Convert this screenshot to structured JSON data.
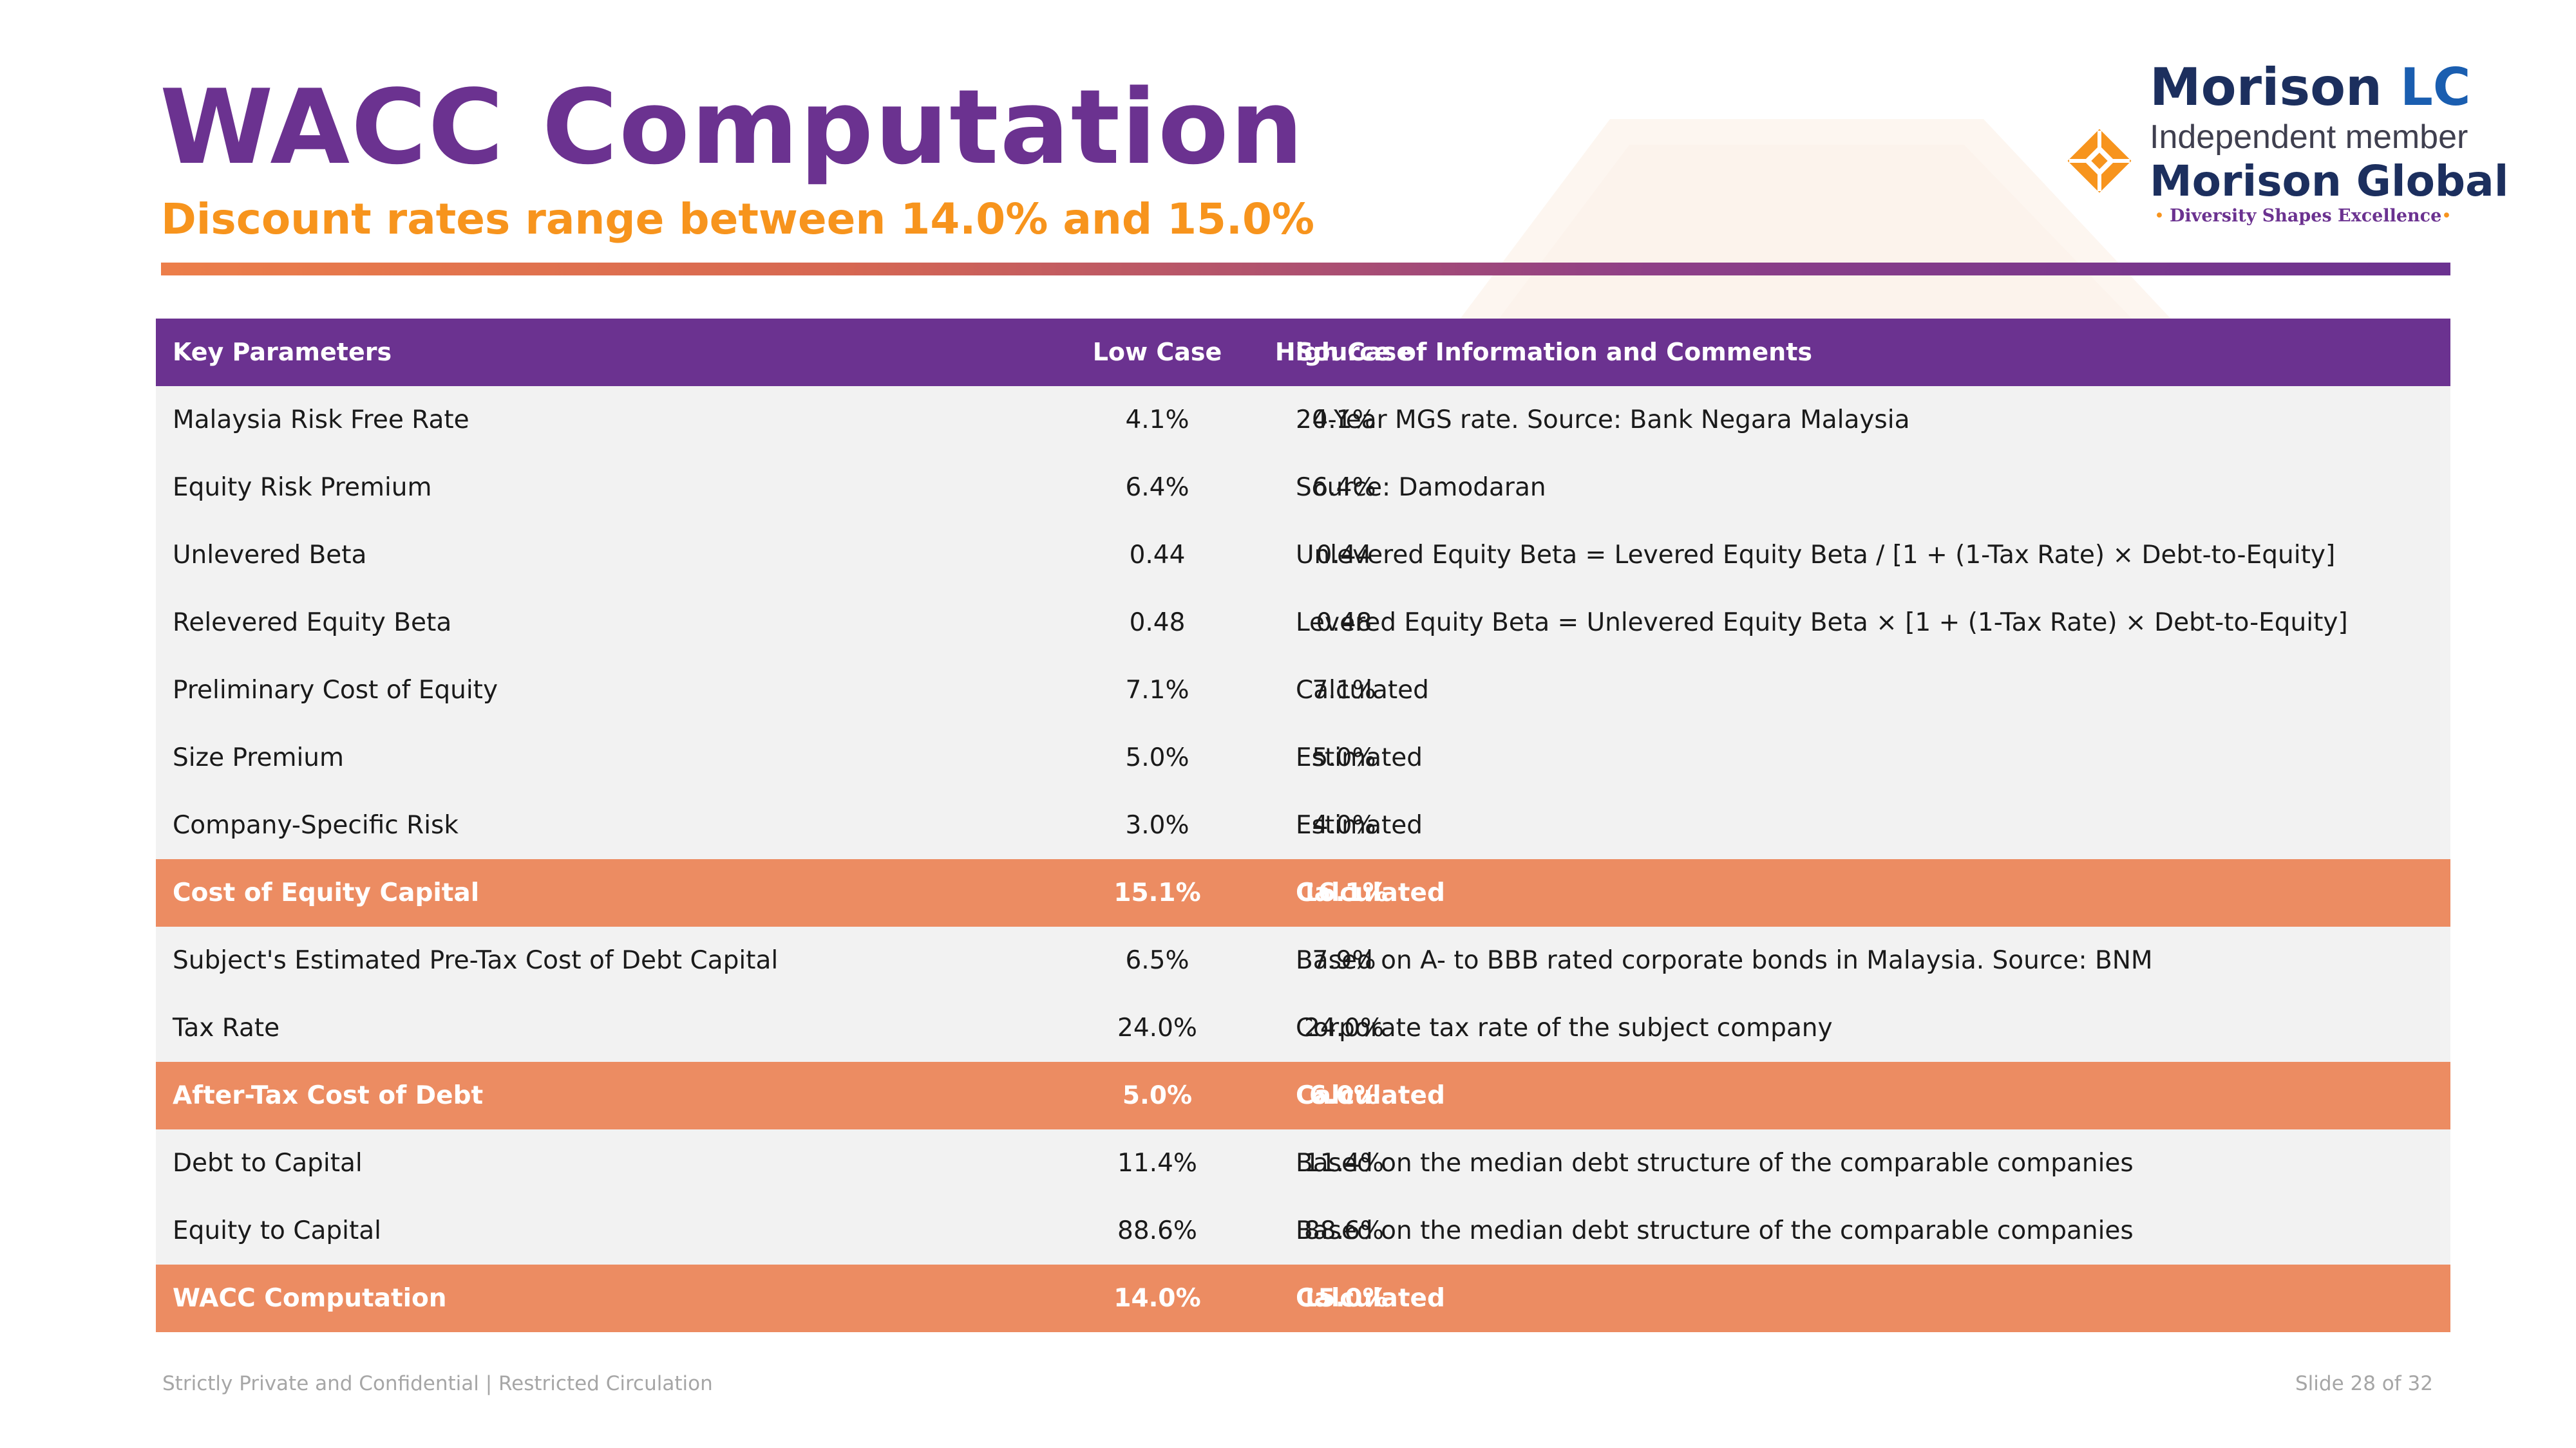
{
  "header": {
    "title": "WACC Computation",
    "subtitle": "Discount rates range between 14.0% and 15.0%"
  },
  "logo": {
    "name_main": "Morison ",
    "name_accent": "LC",
    "independent": "Independent member",
    "network": "Morison Global",
    "tagline": "Diversity Shapes Excellence",
    "mark_icon": "morison-diamond-icon"
  },
  "colors": {
    "purple": "#6b3290",
    "orange": "#f7941d",
    "highlight_row": "#ec8c62",
    "row_bg": "#f2f2f2",
    "navy": "#1c2f5e"
  },
  "table": {
    "columns": [
      "Key Parameters",
      "Low Case",
      "High Case",
      "Source  of Information and Comments"
    ],
    "rows": [
      {
        "param": "Malaysia Risk Free Rate",
        "low": "4.1%",
        "high": "4.1%",
        "source": "20-Year MGS rate. Source: Bank Negara Malaysia",
        "highlight": false
      },
      {
        "param": "Equity Risk Premium",
        "low": "6.4%",
        "high": "6.4%",
        "source": "Source: Damodaran",
        "highlight": false
      },
      {
        "param": "Unlevered Beta",
        "low": "0.44",
        "high": "0.44",
        "source": "Unlevered Equity Beta = Levered Equity Beta / [1 + (1-Tax Rate) × Debt-to-Equity]",
        "highlight": false
      },
      {
        "param": "Relevered Equity Beta",
        "low": "0.48",
        "high": "0.48",
        "source": "Levered Equity Beta = Unlevered Equity Beta × [1 + (1-Tax Rate) × Debt-to-Equity]",
        "highlight": false
      },
      {
        "param": "Preliminary Cost of Equity",
        "low": "7.1%",
        "high": "7.1%",
        "source": "Calculated",
        "highlight": false
      },
      {
        "param": "Size Premium",
        "low": "5.0%",
        "high": "5.0%",
        "source": "Estimated",
        "highlight": false
      },
      {
        "param": "Company-Specific Risk",
        "low": "3.0%",
        "high": "4.0%",
        "source": "Estimated",
        "highlight": false
      },
      {
        "param": "Cost of Equity Capital",
        "low": "15.1%",
        "high": "16.1%",
        "source": "Calculated",
        "highlight": true
      },
      {
        "param": "Subject's Estimated Pre-Tax Cost of Debt Capital",
        "low": "6.5%",
        "high": "7.9%",
        "source": "Based on A- to BBB rated corporate bonds in Malaysia. Source: BNM",
        "highlight": false
      },
      {
        "param": "Tax Rate",
        "low": "24.0%",
        "high": "24.0%",
        "source": "Corporate tax rate of the subject company",
        "highlight": false
      },
      {
        "param": "After-Tax Cost of Debt",
        "low": "5.0%",
        "high": "6.0%",
        "source": "Calculated",
        "highlight": true
      },
      {
        "param": "Debt to Capital",
        "low": "11.4%",
        "high": "11.4%",
        "source": "Based on the median debt structure of the comparable companies",
        "highlight": false
      },
      {
        "param": "Equity to Capital",
        "low": "88.6%",
        "high": "88.6%",
        "source": "Based on the median debt structure of the comparable companies",
        "highlight": false
      },
      {
        "param": "WACC Computation",
        "low": "14.0%",
        "high": "15.0%",
        "source": "Calculated",
        "highlight": true
      }
    ]
  },
  "footer": {
    "confidential": "Strictly Private and Confidential | Restricted Circulation",
    "slide": "Slide 28 of 32"
  }
}
